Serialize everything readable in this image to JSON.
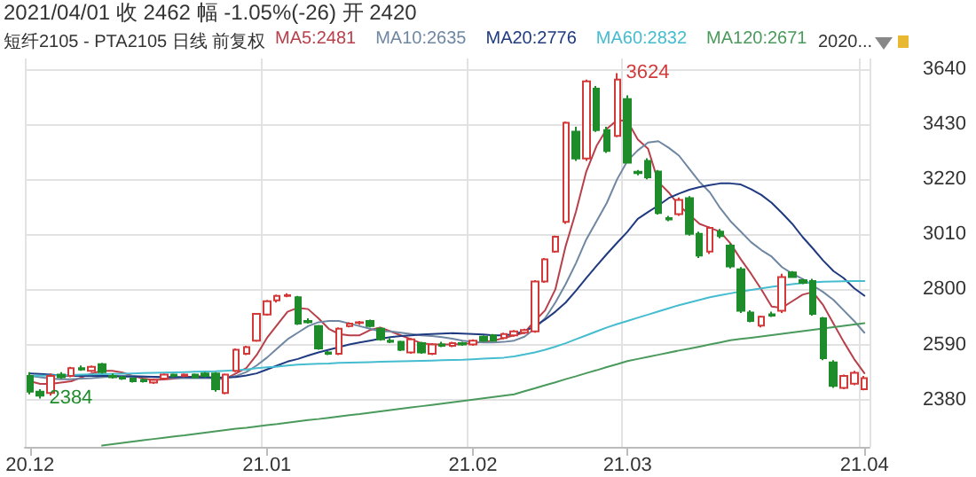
{
  "chart_data": {
    "type": "candlestick",
    "title": "2021/04/01 收 2462 幅 -1.05%(-26) 开 2420",
    "subtitle": "短纤2105 - PTA2105 日线 前复权",
    "annotations": [
      "2020...",
      "3624",
      "2384"
    ],
    "categories": [
      "20.12",
      null,
      null,
      null,
      null,
      null,
      null,
      null,
      null,
      null,
      null,
      null,
      null,
      null,
      null,
      null,
      null,
      null,
      null,
      null,
      null,
      null,
      null,
      "21.01",
      null,
      null,
      null,
      null,
      null,
      null,
      null,
      null,
      null,
      null,
      null,
      null,
      null,
      null,
      null,
      null,
      null,
      null,
      null,
      "21.02",
      null,
      null,
      null,
      null,
      null,
      null,
      null,
      null,
      null,
      null,
      null,
      null,
      null,
      null,
      "21.03",
      null,
      null,
      null,
      null,
      null,
      null,
      null,
      null,
      null,
      null,
      null,
      null,
      null,
      null,
      null,
      null,
      null,
      null,
      null,
      null,
      null,
      null,
      "21.04"
    ],
    "ohlc": [
      [
        2470,
        2485,
        2400,
        2410
      ],
      [
        2410,
        2420,
        2384,
        2395
      ],
      [
        2405,
        2480,
        2395,
        2470
      ],
      [
        2475,
        2485,
        2460,
        2465
      ],
      [
        2470,
        2505,
        2465,
        2500
      ],
      [
        2500,
        2510,
        2490,
        2495
      ],
      [
        2490,
        2510,
        2485,
        2505
      ],
      [
        2515,
        2520,
        2480,
        2485
      ],
      [
        2470,
        2480,
        2460,
        2465
      ],
      [
        2465,
        2470,
        2455,
        2460
      ],
      [
        2460,
        2465,
        2445,
        2450
      ],
      [
        2455,
        2460,
        2445,
        2450
      ],
      [
        2445,
        2460,
        2440,
        2455
      ],
      [
        2460,
        2480,
        2455,
        2475
      ],
      [
        2475,
        2480,
        2465,
        2470
      ],
      [
        2470,
        2480,
        2465,
        2475
      ],
      [
        2475,
        2480,
        2460,
        2465
      ],
      [
        2480,
        2485,
        2465,
        2470
      ],
      [
        2480,
        2485,
        2410,
        2420
      ],
      [
        2405,
        2480,
        2400,
        2475
      ],
      [
        2490,
        2575,
        2485,
        2570
      ],
      [
        2555,
        2585,
        2550,
        2580
      ],
      [
        2605,
        2710,
        2600,
        2707
      ],
      [
        2704,
        2760,
        2700,
        2755
      ],
      [
        2758,
        2780,
        2750,
        2775
      ],
      [
        2775,
        2785,
        2770,
        2778
      ],
      [
        2770,
        2775,
        2665,
        2670
      ],
      [
        2680,
        2690,
        2670,
        2675
      ],
      [
        2660,
        2665,
        2570,
        2575
      ],
      [
        2560,
        2565,
        2550,
        2555
      ],
      [
        2555,
        2655,
        2550,
        2650
      ],
      [
        2660,
        2675,
        2655,
        2670
      ],
      [
        2672,
        2680,
        2665,
        2675
      ],
      [
        2680,
        2685,
        2655,
        2660
      ],
      [
        2650,
        2655,
        2605,
        2610
      ],
      [
        2605,
        2615,
        2595,
        2600
      ],
      [
        2600,
        2605,
        2565,
        2570
      ],
      [
        2560,
        2615,
        2555,
        2610
      ],
      [
        2595,
        2600,
        2555,
        2560
      ],
      [
        2555,
        2595,
        2550,
        2590
      ],
      [
        2590,
        2600,
        2580,
        2585
      ],
      [
        2585,
        2600,
        2580,
        2595
      ],
      [
        2595,
        2600,
        2585,
        2590
      ],
      [
        2590,
        2610,
        2585,
        2605
      ],
      [
        2620,
        2625,
        2600,
        2605
      ],
      [
        2625,
        2630,
        2600,
        2605
      ],
      [
        2615,
        2635,
        2610,
        2630
      ],
      [
        2625,
        2645,
        2620,
        2640
      ],
      [
        2635,
        2650,
        2630,
        2645
      ],
      [
        2640,
        2835,
        2635,
        2830
      ],
      [
        2830,
        2920,
        2825,
        2915
      ],
      [
        2944,
        3005,
        2940,
        3001
      ],
      [
        3057,
        3440,
        3050,
        3435
      ],
      [
        3401,
        3420,
        3290,
        3299
      ],
      [
        3299,
        3600,
        3290,
        3593
      ],
      [
        3565,
        3575,
        3400,
        3407
      ],
      [
        3407,
        3420,
        3320,
        3328
      ],
      [
        3385,
        3624,
        3380,
        3600
      ],
      [
        3525,
        3540,
        3280,
        3283
      ],
      [
        3248,
        3255,
        3235,
        3243
      ],
      [
        3290,
        3300,
        3220,
        3227
      ],
      [
        3249,
        3255,
        3085,
        3091
      ],
      [
        3072,
        3080,
        3060,
        3067
      ],
      [
        3087,
        3150,
        3080,
        3141
      ],
      [
        3148,
        3155,
        3005,
        3012
      ],
      [
        3012,
        3020,
        2920,
        2929
      ],
      [
        2944,
        3040,
        2935,
        3035
      ],
      [
        3020,
        3030,
        2995,
        3003
      ],
      [
        2967,
        2975,
        2880,
        2888
      ],
      [
        2877,
        2885,
        2710,
        2719
      ],
      [
        2712,
        2720,
        2675,
        2680
      ],
      [
        2662,
        2700,
        2655,
        2696
      ],
      [
        2705,
        2715,
        2695,
        2700
      ],
      [
        2719,
        2860,
        2710,
        2847
      ],
      [
        2865,
        2870,
        2845,
        2847
      ],
      [
        2835,
        2840,
        2820,
        2825
      ],
      [
        2832,
        2840,
        2700,
        2707
      ],
      [
        2690,
        2695,
        2530,
        2538
      ],
      [
        2522,
        2530,
        2425,
        2432
      ],
      [
        2425,
        2475,
        2420,
        2470
      ],
      [
        2441,
        2490,
        2435,
        2482
      ],
      [
        2420,
        2470,
        2415,
        2462
      ]
    ],
    "series": [
      {
        "type": "line",
        "name": "MA5:2481",
        "color": "#b8404a",
        "values": [
          2450,
          2440,
          2440,
          2445,
          2450,
          2465,
          2480,
          2490,
          2490,
          2483,
          2470,
          2460,
          2455,
          2457,
          2460,
          2465,
          2468,
          2470,
          2458,
          2460,
          2480,
          2500,
          2550,
          2615,
          2665,
          2715,
          2730,
          2725,
          2690,
          2650,
          2630,
          2625,
          2625,
          2645,
          2655,
          2640,
          2625,
          2610,
          2595,
          2590,
          2590,
          2590,
          2592,
          2595,
          2600,
          2605,
          2615,
          2625,
          2635,
          2680,
          2720,
          2800,
          2965,
          3096,
          3249,
          3347,
          3412,
          3445,
          3442,
          3372,
          3336,
          3209,
          3170,
          3120,
          3085,
          3050,
          3035,
          3020,
          2975,
          2915,
          2860,
          2800,
          2735,
          2730,
          2755,
          2780,
          2790,
          2740,
          2670,
          2600,
          2535,
          2481
        ]
      },
      {
        "type": "line",
        "name": "MA10:2635",
        "color": "#6f87a3",
        "values": [
          2470,
          2465,
          2460,
          2458,
          2458,
          2460,
          2462,
          2465,
          2468,
          2470,
          2470,
          2468,
          2466,
          2464,
          2462,
          2462,
          2462,
          2463,
          2462,
          2462,
          2470,
          2485,
          2510,
          2540,
          2575,
          2610,
          2635,
          2660,
          2675,
          2680,
          2680,
          2670,
          2660,
          2650,
          2640,
          2640,
          2635,
          2630,
          2625,
          2622,
          2618,
          2612,
          2605,
          2600,
          2598,
          2598,
          2600,
          2605,
          2620,
          2650,
          2690,
          2750,
          2820,
          2900,
          2990,
          3060,
          3130,
          3220,
          3290,
          3330,
          3360,
          3365,
          3340,
          3310,
          3260,
          3210,
          3170,
          3110,
          3060,
          3020,
          2980,
          2950,
          2925,
          2885,
          2860,
          2840,
          2815,
          2790,
          2760,
          2720,
          2680,
          2635
        ]
      },
      {
        "type": "line",
        "name": "MA20:2776",
        "color": "#1f3a80",
        "values": [
          2480,
          2478,
          2475,
          2472,
          2470,
          2470,
          2470,
          2470,
          2470,
          2468,
          2468,
          2468,
          2467,
          2466,
          2466,
          2466,
          2465,
          2465,
          2464,
          2464,
          2466,
          2472,
          2480,
          2495,
          2510,
          2525,
          2535,
          2548,
          2560,
          2570,
          2580,
          2590,
          2598,
          2605,
          2612,
          2618,
          2622,
          2625,
          2628,
          2630,
          2632,
          2633,
          2632,
          2630,
          2628,
          2625,
          2625,
          2630,
          2640,
          2660,
          2685,
          2715,
          2750,
          2795,
          2843,
          2890,
          2935,
          2978,
          3020,
          3069,
          3095,
          3120,
          3148,
          3165,
          3180,
          3190,
          3198,
          3204,
          3204,
          3200,
          3182,
          3160,
          3130,
          3091,
          3050,
          3000,
          2956,
          2910,
          2870,
          2843,
          2805,
          2776
        ]
      },
      {
        "type": "line",
        "name": "MA60:2832",
        "color": "#45bccf",
        "values": [
          2470,
          2471,
          2472,
          2473,
          2474,
          2475,
          2476,
          2477,
          2478,
          2479,
          2480,
          2481,
          2482,
          2483,
          2484,
          2485,
          2486,
          2487,
          2488,
          2490,
          2492,
          2495,
          2500,
          2503,
          2506,
          2510,
          2513,
          2515,
          2517,
          2518,
          2520,
          2521,
          2522,
          2523,
          2524,
          2525,
          2526,
          2527,
          2528,
          2529,
          2530,
          2531,
          2532,
          2534,
          2536,
          2538,
          2540,
          2545,
          2552,
          2560,
          2570,
          2582,
          2595,
          2610,
          2625,
          2640,
          2655,
          2668,
          2680,
          2692,
          2704,
          2716,
          2728,
          2740,
          2750,
          2760,
          2770,
          2778,
          2785,
          2792,
          2798,
          2804,
          2810,
          2815,
          2820,
          2824,
          2827,
          2829,
          2830,
          2831,
          2832,
          2832
        ]
      },
      {
        "type": "line",
        "name": "MA120:2671",
        "color": "#4a9a5c",
        "values": [
          null,
          null,
          null,
          null,
          null,
          null,
          null,
          2205,
          2210,
          2215,
          2220,
          2225,
          2230,
          2235,
          2240,
          2244,
          2249,
          2254,
          2259,
          2264,
          2269,
          2273,
          2278,
          2283,
          2287,
          2292,
          2297,
          2302,
          2306,
          2311,
          2316,
          2321,
          2325,
          2330,
          2335,
          2340,
          2345,
          2350,
          2355,
          2360,
          2365,
          2370,
          2375,
          2380,
          2385,
          2390,
          2395,
          2400,
          2412,
          2423,
          2435,
          2446,
          2458,
          2469,
          2481,
          2492,
          2504,
          2515,
          2527,
          2535,
          2543,
          2551,
          2559,
          2567,
          2574,
          2582,
          2590,
          2598,
          2606,
          2611,
          2616,
          2621,
          2626,
          2631,
          2636,
          2641,
          2646,
          2651,
          2656,
          2661,
          2666,
          2671
        ]
      }
    ],
    "ylim": [
      2200,
      3680
    ],
    "yticks": [
      2380,
      2590,
      2800,
      3010,
      3220,
      3430,
      3640
    ],
    "grid": true,
    "legend": "top",
    "marker": "none",
    "line_style": "solid"
  }
}
